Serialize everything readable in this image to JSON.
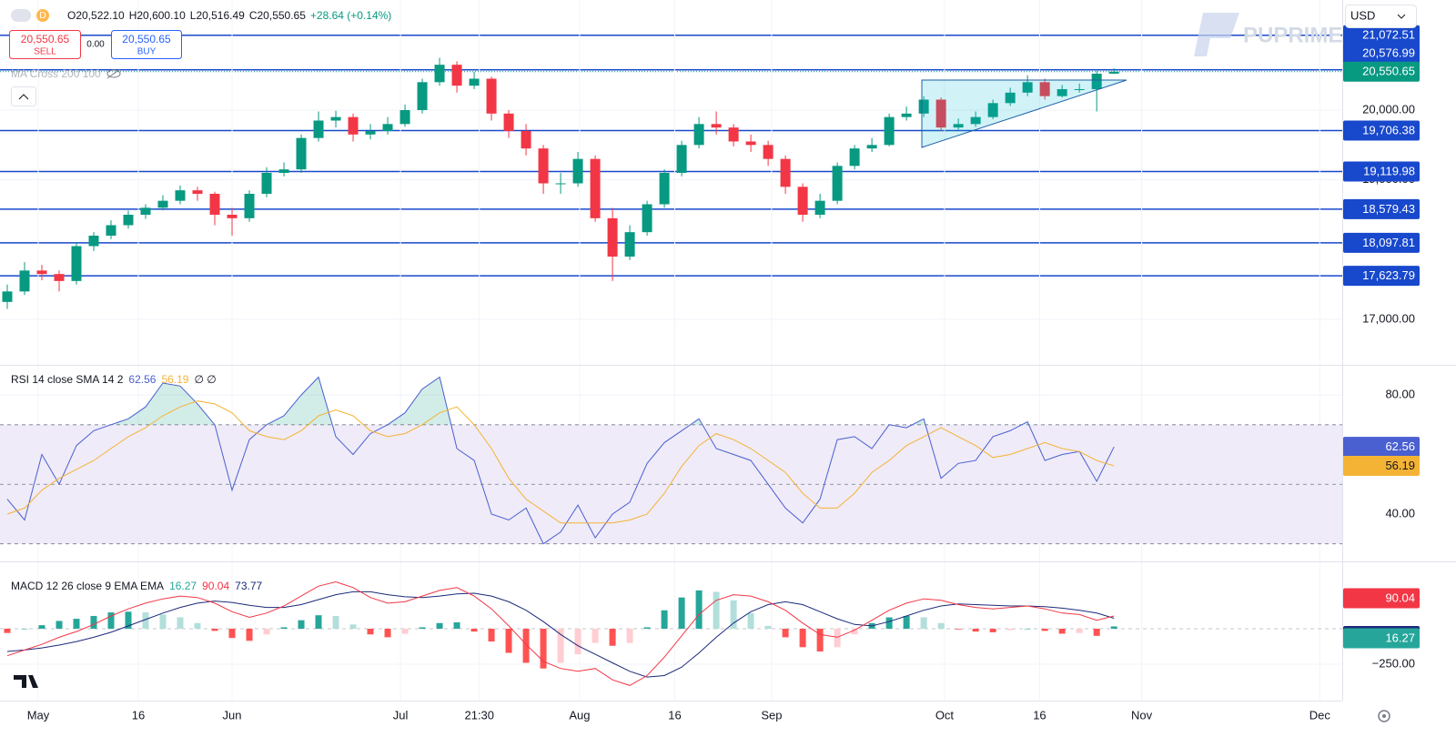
{
  "header": {
    "interval": "D",
    "ohlc_labels": [
      "O20,522.10",
      "H20,600.10",
      "L20,516.49",
      "C20,550.65"
    ],
    "change": "+28.64 (+0.14%)"
  },
  "trade": {
    "sell_price": "20,550.65",
    "sell": "SELL",
    "spread": "0.00",
    "buy_price": "20,550.65",
    "buy": "BUY"
  },
  "indicator": "MA Cross 200 100",
  "watermark": "PUPRIME",
  "currency": "USD",
  "chart_data": [
    {
      "type": "candlestick",
      "x": [
        0,
        1,
        2,
        3,
        4,
        5,
        6,
        7,
        8,
        9,
        10,
        11,
        12,
        13,
        14,
        15,
        16,
        17,
        18,
        19,
        20,
        21,
        22,
        23,
        24,
        25,
        26,
        27,
        28,
        29,
        30,
        31,
        32,
        33,
        34,
        35,
        36,
        37,
        38,
        39,
        40,
        41,
        42,
        43,
        44,
        45,
        46,
        47,
        48,
        49,
        50,
        51,
        52,
        53,
        54,
        55,
        56,
        57,
        58,
        59,
        60,
        61,
        62,
        63,
        64
      ],
      "xlim": [
        -0.42,
        77.2
      ],
      "open": [
        17250,
        17400,
        17700,
        17650,
        17550,
        18050,
        18200,
        18350,
        18500,
        18600,
        18700,
        18850,
        18800,
        18500,
        18450,
        18800,
        19100,
        19150,
        19600,
        19850,
        19900,
        19650,
        19700,
        19800,
        20000,
        20400,
        20650,
        20350,
        20450,
        19950,
        19700,
        19450,
        18950,
        18950,
        19300,
        18450,
        17900,
        18250,
        18650,
        19100,
        19500,
        19800,
        19750,
        19550,
        19500,
        19300,
        18900,
        18500,
        18700,
        19200,
        19450,
        19500,
        19900,
        19950,
        20150,
        19750,
        19800,
        19900,
        20100,
        20250,
        20400,
        20200,
        20300,
        20300,
        20522.1
      ],
      "high": [
        17500,
        17820,
        17780,
        17700,
        18100,
        18250,
        18420,
        18560,
        18650,
        18780,
        18920,
        18900,
        18830,
        18600,
        18850,
        19180,
        19250,
        19650,
        19980,
        19990,
        19950,
        19800,
        19900,
        20080,
        20450,
        20750,
        20700,
        20550,
        20480,
        20000,
        19800,
        19500,
        19100,
        19400,
        19350,
        18600,
        18350,
        18700,
        19150,
        19560,
        19900,
        19980,
        19800,
        19650,
        19560,
        19350,
        18950,
        18800,
        19250,
        19500,
        19600,
        19950,
        20050,
        20200,
        20180,
        19880,
        19980,
        20150,
        20320,
        20500,
        20450,
        20360,
        20380,
        20560,
        20600.1
      ],
      "low": [
        17150,
        17350,
        17560,
        17400,
        17500,
        17980,
        18150,
        18300,
        18440,
        18560,
        18650,
        18700,
        18350,
        18200,
        18400,
        18750,
        19050,
        19100,
        19550,
        19750,
        19550,
        19580,
        19650,
        19760,
        19950,
        20350,
        20250,
        20300,
        19850,
        19600,
        19350,
        18800,
        18800,
        18900,
        18400,
        17550,
        17850,
        18200,
        18600,
        19050,
        19450,
        19650,
        19480,
        19400,
        19200,
        18800,
        18400,
        18450,
        18650,
        19150,
        19400,
        19480,
        19850,
        19900,
        19700,
        19720,
        19760,
        19870,
        20060,
        20200,
        20150,
        20180,
        20250,
        19980,
        20516.49
      ],
      "close": [
        17400,
        17700,
        17650,
        17550,
        18050,
        18200,
        18350,
        18500,
        18600,
        18700,
        18850,
        18800,
        18500,
        18450,
        18800,
        19100,
        19150,
        19600,
        19850,
        19900,
        19650,
        19700,
        19800,
        20000,
        20400,
        20650,
        20350,
        20450,
        19950,
        19700,
        19450,
        18950,
        18950,
        19300,
        18450,
        17900,
        18250,
        18650,
        19100,
        19500,
        19800,
        19750,
        19550,
        19500,
        19300,
        18900,
        18500,
        18700,
        19200,
        19450,
        19500,
        19900,
        19950,
        20150,
        19750,
        19800,
        19900,
        20100,
        20250,
        20400,
        20200,
        20300,
        20300,
        20522,
        20550.65
      ],
      "up_color": "#089981",
      "down_color": "#f23645",
      "ylim": [
        16361,
        21578
      ],
      "yticks": [
        {
          "value": 17000,
          "label": "17,000.00"
        },
        {
          "value": 19000,
          "label": "19,000.00"
        },
        {
          "value": 20000,
          "label": "20,000.00"
        }
      ],
      "grid": true,
      "levels": [
        {
          "value": 21072.51,
          "label": "21,072.51"
        },
        {
          "value": 20576.99,
          "label": "20,576.99"
        },
        {
          "value": 19706.38,
          "label": "19,706.38"
        },
        {
          "value": 19119.98,
          "label": "19,119.98"
        },
        {
          "value": 18579.43,
          "label": "18,579.43"
        },
        {
          "value": 18097.81,
          "label": "18,097.81"
        },
        {
          "value": 17623.79,
          "label": "17,623.79"
        }
      ],
      "level_color": "#1848cc",
      "last_label": "20,550.65",
      "last_color": "#089981"
    },
    {
      "type": "line",
      "title": "RSI 14 close SMA 14 2",
      "x": [
        0,
        1,
        2,
        3,
        4,
        5,
        6,
        7,
        8,
        9,
        10,
        11,
        12,
        13,
        14,
        15,
        16,
        17,
        18,
        19,
        20,
        21,
        22,
        23,
        24,
        25,
        26,
        27,
        28,
        29,
        30,
        31,
        32,
        33,
        34,
        35,
        36,
        37,
        38,
        39,
        40,
        41,
        42,
        43,
        44,
        45,
        46,
        47,
        48,
        49,
        50,
        51,
        52,
        53,
        54,
        55,
        56,
        57,
        58,
        59,
        60,
        61,
        62,
        63,
        64
      ],
      "xlim": [
        -0.42,
        77.2
      ],
      "series": [
        {
          "color": "#4a5fd0",
          "values": [
            45,
            38,
            60,
            50,
            63,
            68,
            70,
            72,
            76,
            84,
            83,
            77,
            70,
            48,
            65,
            70,
            73,
            80,
            86,
            66,
            60,
            67,
            70,
            74,
            82,
            86,
            62,
            58,
            40,
            38,
            42,
            30,
            34,
            43,
            32,
            40,
            44,
            57,
            64,
            68,
            72,
            62,
            60,
            58,
            50,
            42,
            37,
            45,
            65,
            66,
            62,
            70,
            69,
            72,
            52,
            57,
            58,
            66,
            68,
            71,
            58,
            60,
            61,
            51,
            62.56
          ]
        },
        {
          "color": "#f5b335",
          "values": [
            40,
            42,
            48,
            52,
            55,
            58,
            62,
            66,
            69,
            73,
            76,
            78,
            77,
            74,
            68,
            66,
            65,
            68,
            73,
            75,
            73,
            68,
            66,
            67,
            70,
            74,
            76,
            70,
            62,
            52,
            45,
            41,
            37,
            37,
            37,
            37,
            38,
            40,
            47,
            56,
            63,
            67,
            65,
            62,
            58,
            54,
            47,
            42,
            42,
            47,
            54,
            58,
            63,
            66,
            69,
            66,
            63,
            59,
            60,
            62,
            64,
            62,
            61,
            58,
            56.19
          ]
        }
      ],
      "ylim": [
        24.7,
        88.9
      ],
      "yticks": [
        {
          "value": 80,
          "label": "80.00"
        },
        {
          "value": 40,
          "label": "40.00"
        }
      ],
      "bands": [
        70,
        50,
        30
      ],
      "band_fill": "#efebf8",
      "na_labels": "∅ ∅"
    },
    {
      "type": "macd",
      "title": "MACD 12 26 close 9 EMA EMA",
      "x": [
        0,
        1,
        2,
        3,
        4,
        5,
        6,
        7,
        8,
        9,
        10,
        11,
        12,
        13,
        14,
        15,
        16,
        17,
        18,
        19,
        20,
        21,
        22,
        23,
        24,
        25,
        26,
        27,
        28,
        29,
        30,
        31,
        32,
        33,
        34,
        35,
        36,
        37,
        38,
        39,
        40,
        41,
        42,
        43,
        44,
        45,
        46,
        47,
        48,
        49,
        50,
        51,
        52,
        53,
        54,
        55,
        56,
        57,
        58,
        59,
        60,
        61,
        62,
        63,
        64
      ],
      "xlim": [
        -0.42,
        77.2
      ],
      "histogram": {
        "colors": [
          "#26a69a",
          "#b2dfdb",
          "#ffcdd2",
          "#ff5252"
        ],
        "values": [
          -30,
          0,
          25,
          55,
          70,
          90,
          115,
          120,
          115,
          100,
          80,
          40,
          -15,
          -65,
          -85,
          -40,
          10,
          60,
          95,
          90,
          30,
          -40,
          -60,
          -35,
          10,
          40,
          45,
          -20,
          -90,
          -170,
          -240,
          -280,
          -240,
          -180,
          -100,
          -120,
          -100,
          10,
          130,
          220,
          270,
          260,
          200,
          110,
          20,
          -60,
          -130,
          -160,
          -130,
          -40,
          40,
          80,
          90,
          80,
          40,
          -5,
          -20,
          -25,
          -10,
          0,
          -15,
          -35,
          -30,
          -50,
          16.27
        ]
      },
      "macd": {
        "color": "#f23645",
        "values": [
          -190,
          -150,
          -110,
          -60,
          -20,
          30,
          90,
          140,
          180,
          210,
          230,
          220,
          180,
          120,
          80,
          110,
          160,
          230,
          300,
          330,
          290,
          220,
          180,
          190,
          230,
          270,
          290,
          230,
          140,
          20,
          -110,
          -230,
          -280,
          -300,
          -280,
          -360,
          -400,
          -330,
          -200,
          -50,
          100,
          200,
          240,
          230,
          190,
          130,
          40,
          -40,
          -60,
          -10,
          60,
          130,
          180,
          210,
          200,
          170,
          150,
          140,
          150,
          160,
          140,
          110,
          100,
          60,
          90.04
        ]
      },
      "signal": {
        "color": "#1c2a7a",
        "values": [
          -160,
          -150,
          -135,
          -115,
          -90,
          -60,
          -25,
          20,
          65,
          110,
          150,
          180,
          195,
          185,
          165,
          150,
          150,
          170,
          205,
          240,
          260,
          260,
          240,
          225,
          220,
          230,
          245,
          250,
          230,
          190,
          130,
          50,
          -40,
          -120,
          -180,
          -240,
          -300,
          -340,
          -330,
          -270,
          -170,
          -60,
          40,
          120,
          170,
          190,
          170,
          120,
          70,
          30,
          20,
          50,
          90,
          130,
          160,
          175,
          170,
          165,
          160,
          160,
          155,
          145,
          130,
          110,
          73.77
        ]
      },
      "ylim": [
        -474,
        455
      ],
      "yticks": [
        {
          "value": -250,
          "label": "−250.00"
        }
      ],
      "xticks": [
        {
          "value": 1.79,
          "label": "May"
        },
        {
          "value": 7.58,
          "label": "16"
        },
        {
          "value": 13.0,
          "label": "Jun"
        },
        {
          "value": 22.74,
          "label": "Jul"
        },
        {
          "value": 27.3,
          "label": "21:30"
        },
        {
          "value": 33.1,
          "label": "Aug"
        },
        {
          "value": 38.6,
          "label": "16"
        },
        {
          "value": 44.2,
          "label": "Sep"
        },
        {
          "value": 54.2,
          "label": "Oct"
        },
        {
          "value": 59.7,
          "label": "16"
        },
        {
          "value": 65.6,
          "label": "Nov"
        },
        {
          "value": 75.9,
          "label": "Dec"
        }
      ]
    }
  ]
}
